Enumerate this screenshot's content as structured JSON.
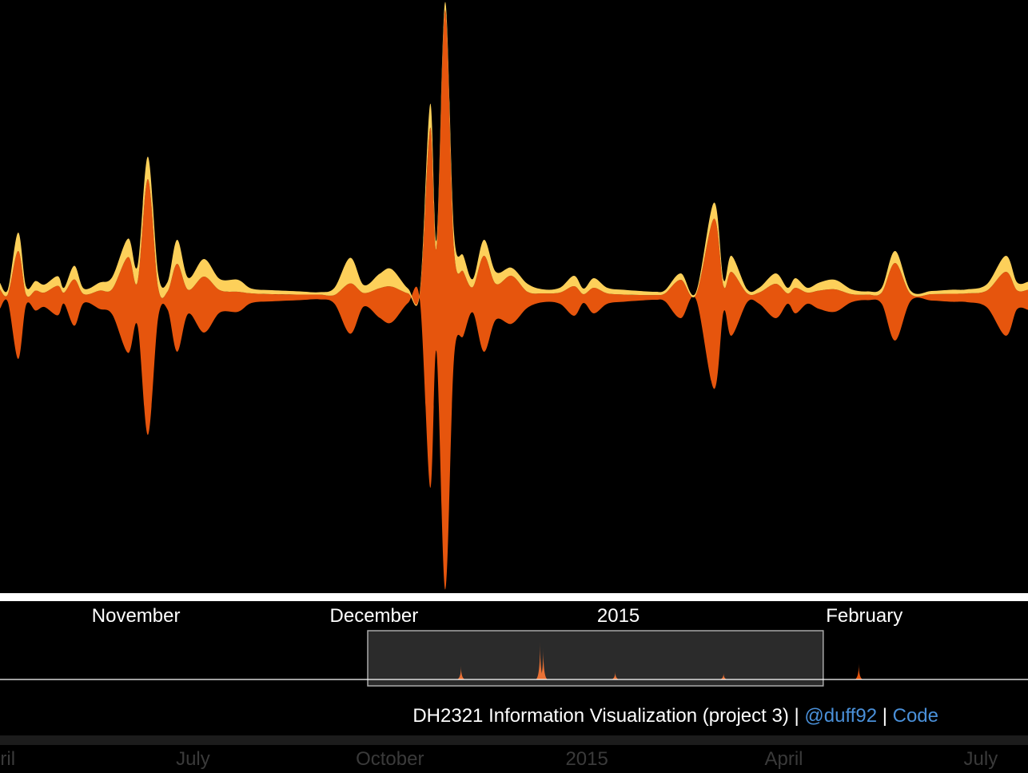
{
  "chart_data": {
    "type": "streamgraph",
    "x": [
      0,
      1,
      2.3,
      3.3,
      4.5,
      5.6,
      7.3,
      8.1,
      9.4,
      10.6,
      12.6,
      14.2,
      16.2,
      17.4,
      18.7,
      20,
      21.2,
      22.4,
      23.8,
      25.8,
      27.8,
      30.1,
      31.8,
      34.4,
      37.9,
      40.4,
      42.3,
      44.3,
      46,
      48,
      49.5,
      51.6,
      53.1,
      54.4,
      55.2,
      56.3,
      57.4,
      58.6,
      59.8,
      61.2,
      62.7,
      64.7,
      66.7,
      68.7,
      70.8,
      72.6,
      73.8,
      75.1,
      76.8,
      78.9,
      80.9,
      82.9,
      84.1,
      86.1,
      88,
      90.3,
      91.5,
      92.5,
      94.5,
      96,
      98.1,
      99.6,
      100.6,
      102.1,
      103.6,
      105.6,
      107.7,
      109.7,
      111.5,
      113.2,
      115.2,
      117.8,
      120.3,
      122.3,
      124.8,
      127.2,
      128.6,
      130
    ],
    "series": [
      {
        "color": "#e6550d",
        "values": [
          24,
          10,
          135,
          13,
          25,
          18,
          37,
          14,
          58,
          11,
          23,
          32,
          120,
          55,
          320,
          38,
          23,
          110,
          30,
          70,
          28,
          25,
          12,
          9,
          7,
          6,
          11,
          63,
          17,
          37,
          45,
          12,
          9,
          450,
          130,
          725,
          140,
          80,
          32,
          120,
          45,
          60,
          20,
          11,
          14,
          37,
          11,
          32,
          13,
          9,
          7,
          6,
          10,
          48,
          5,
          213,
          32,
          80,
          11,
          14,
          43,
          13,
          32,
          14,
          23,
          28,
          10,
          7,
          14,
          97,
          8,
          8,
          10,
          11,
          21,
          80,
          24,
          25
        ]
      },
      {
        "color": "#fdd05a",
        "values": [
          8,
          6,
          23,
          10,
          12,
          10,
          12,
          6,
          17,
          7,
          10,
          15,
          23,
          20,
          28,
          17,
          12,
          30,
          15,
          22,
          14,
          15,
          6,
          5,
          4,
          3,
          9,
          32,
          10,
          18,
          22,
          6,
          3,
          30,
          10,
          10,
          20,
          20,
          10,
          20,
          15,
          10,
          10,
          5,
          6,
          13,
          7,
          12,
          7,
          6,
          5,
          4,
          4,
          8,
          3,
          20,
          8,
          20,
          5,
          6,
          13,
          7,
          12,
          6,
          10,
          12,
          6,
          4,
          6,
          15,
          4,
          4,
          5,
          5,
          8,
          20,
          10,
          10
        ]
      }
    ],
    "xlim": [
      0,
      130
    ],
    "ylim": [
      -370,
      370
    ],
    "xticks": [
      {
        "value": 17.2,
        "label": "November"
      },
      {
        "value": 47.3,
        "label": "December"
      },
      {
        "value": 78.2,
        "label": "2015"
      },
      {
        "value": 109.3,
        "label": "February"
      }
    ]
  },
  "context_chart": {
    "type": "spikes",
    "x": [
      58.3,
      68.3,
      68.7,
      77.8,
      91.5,
      108.6
    ],
    "values": [
      17,
      48,
      40,
      10,
      8,
      20
    ],
    "ylim": [
      0,
      60
    ],
    "color": "#e6550d",
    "brush": [
      46.5,
      104.1
    ]
  },
  "overview": {
    "xlim": [
      0.06,
      15.72
    ],
    "xticks": [
      {
        "value": 0,
        "label": "April"
      },
      {
        "value": 3,
        "label": "July"
      },
      {
        "value": 6,
        "label": "October"
      },
      {
        "value": 9,
        "label": "2015"
      },
      {
        "value": 12,
        "label": "April"
      },
      {
        "value": 15,
        "label": "July"
      }
    ]
  },
  "footer": {
    "credit": "DH2321 Information Visualization (project 3)",
    "separator": "|",
    "author": "@duff92",
    "code": "Code"
  }
}
